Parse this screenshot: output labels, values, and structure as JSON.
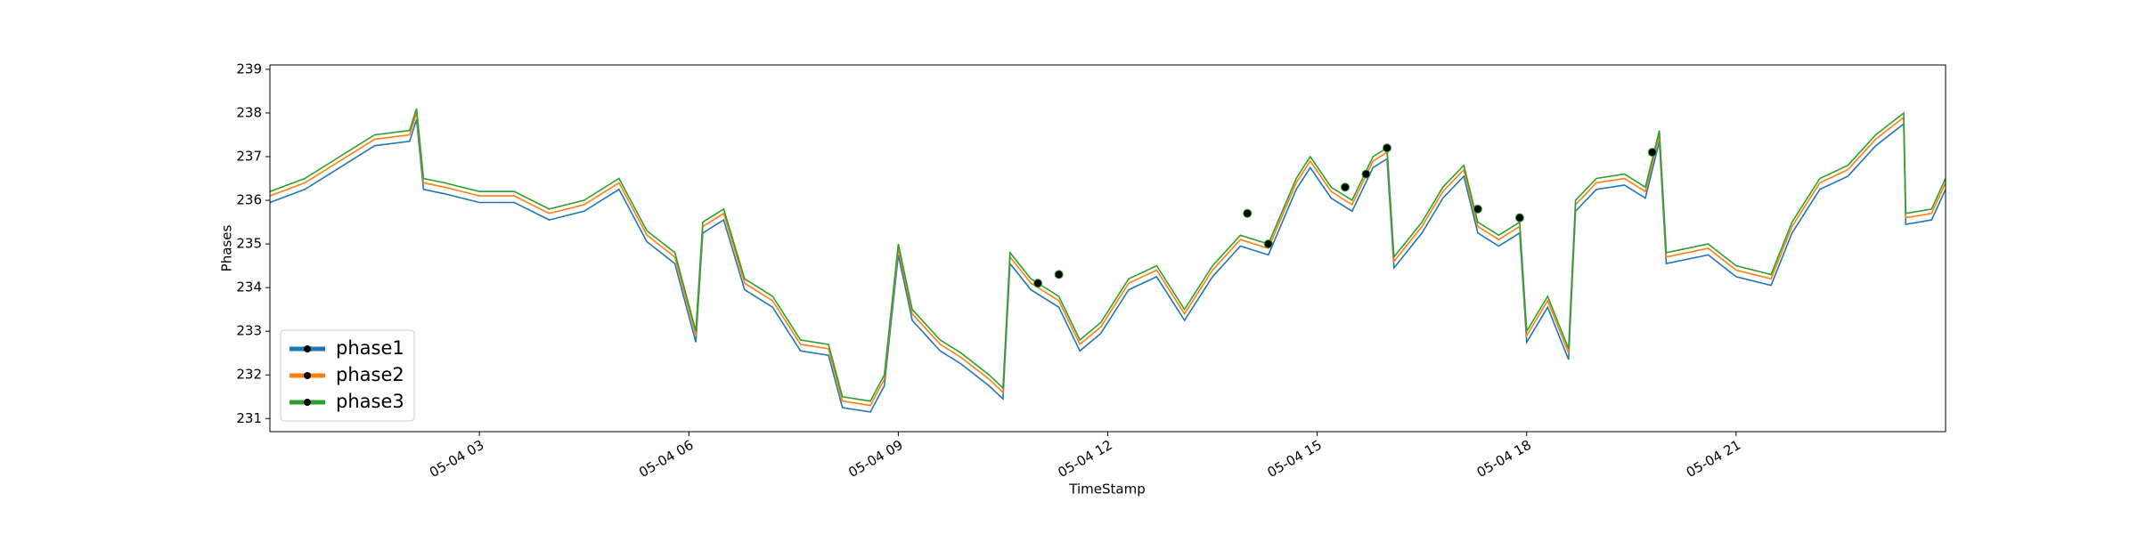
{
  "chart_data": {
    "type": "line",
    "xlabel": "TimeStamp",
    "ylabel": "Phases",
    "x": [
      0,
      0.5,
      1,
      1.5,
      2,
      2.1,
      2.2,
      2.5,
      3,
      3.5,
      4,
      4.5,
      5,
      5.4,
      5.8,
      6.1,
      6.2,
      6.5,
      6.8,
      7.2,
      7.6,
      8,
      8.2,
      8.6,
      8.8,
      9,
      9.2,
      9.6,
      9.9,
      10.3,
      10.5,
      10.6,
      10.9,
      11.3,
      11.6,
      11.9,
      12.3,
      12.7,
      13.1,
      13.5,
      13.9,
      14.3,
      14.7,
      14.9,
      15.2,
      15.5,
      15.8,
      16,
      16.1,
      16.5,
      16.8,
      17.1,
      17.3,
      17.6,
      17.9,
      18,
      18.3,
      18.6,
      18.7,
      19,
      19.4,
      19.7,
      19.9,
      20,
      20.6,
      21,
      21.5,
      21.8,
      22.2,
      22.6,
      23,
      23.4,
      23.43,
      23.8,
      24
    ],
    "series": [
      {
        "name": "phase1",
        "color": "#1f77b4",
        "values": [
          235.95,
          236.25,
          236.75,
          237.25,
          237.35,
          237.85,
          236.25,
          236.15,
          235.95,
          235.95,
          235.55,
          235.75,
          236.25,
          235.05,
          234.55,
          232.75,
          235.25,
          235.55,
          233.95,
          233.55,
          232.55,
          232.45,
          231.25,
          231.15,
          231.75,
          234.75,
          233.25,
          232.55,
          232.25,
          231.75,
          231.45,
          234.55,
          233.95,
          233.55,
          232.55,
          232.95,
          233.95,
          234.25,
          233.25,
          234.25,
          234.95,
          234.75,
          236.25,
          236.75,
          236.05,
          235.75,
          236.75,
          236.95,
          234.45,
          235.25,
          236.05,
          236.55,
          235.25,
          234.95,
          235.25,
          232.75,
          233.55,
          232.35,
          235.75,
          236.25,
          236.35,
          236.05,
          237.35,
          234.55,
          234.75,
          234.25,
          234.05,
          235.25,
          236.25,
          236.55,
          237.25,
          237.75,
          235.45,
          235.55,
          236.25
        ]
      },
      {
        "name": "phase2",
        "color": "#ff7f0e",
        "values": [
          236.1,
          236.4,
          236.9,
          237.4,
          237.5,
          238.0,
          236.4,
          236.3,
          236.1,
          236.1,
          235.7,
          235.9,
          236.4,
          235.2,
          234.7,
          232.9,
          235.4,
          235.7,
          234.1,
          233.7,
          232.7,
          232.6,
          231.4,
          231.3,
          231.9,
          234.9,
          233.4,
          232.7,
          232.4,
          231.9,
          231.6,
          234.7,
          234.1,
          233.7,
          232.7,
          233.1,
          234.1,
          234.4,
          233.4,
          234.4,
          235.1,
          234.9,
          236.4,
          236.9,
          236.2,
          235.9,
          236.9,
          237.1,
          234.6,
          235.4,
          236.2,
          236.7,
          235.4,
          235.1,
          235.4,
          232.9,
          233.7,
          232.5,
          235.9,
          236.4,
          236.5,
          236.2,
          237.5,
          234.7,
          234.9,
          234.4,
          234.2,
          235.4,
          236.4,
          236.7,
          237.4,
          237.9,
          235.6,
          235.7,
          236.4
        ]
      },
      {
        "name": "phase3",
        "color": "#2ca02c",
        "values": [
          236.2,
          236.5,
          237.0,
          237.5,
          237.6,
          238.1,
          236.5,
          236.4,
          236.2,
          236.2,
          235.8,
          236.0,
          236.5,
          235.3,
          234.8,
          233.0,
          235.5,
          235.8,
          234.2,
          233.8,
          232.8,
          232.7,
          231.5,
          231.4,
          232.0,
          235.0,
          233.5,
          232.8,
          232.5,
          232.0,
          231.7,
          234.8,
          234.2,
          233.8,
          232.8,
          233.2,
          234.2,
          234.5,
          233.5,
          234.5,
          235.2,
          235.0,
          236.5,
          237.0,
          236.3,
          236.0,
          237.0,
          237.2,
          234.7,
          235.5,
          236.3,
          236.8,
          235.5,
          235.2,
          235.5,
          233.0,
          233.8,
          232.6,
          236.0,
          236.5,
          236.6,
          236.3,
          237.6,
          234.8,
          235.0,
          234.5,
          234.3,
          235.5,
          236.5,
          236.8,
          237.5,
          238.0,
          235.7,
          235.8,
          236.5
        ]
      }
    ],
    "markers": {
      "color": "black",
      "x": [
        11.0,
        11.3,
        14.0,
        14.3,
        15.4,
        15.7,
        16.0,
        17.3,
        17.9,
        19.8
      ],
      "values": [
        234.1,
        234.3,
        235.7,
        235.0,
        236.3,
        236.6,
        237.2,
        235.8,
        235.6,
        237.1
      ]
    },
    "xlim": [
      0,
      24
    ],
    "ylim": [
      230.7,
      239.1
    ],
    "xticks": [
      {
        "value": 3,
        "label": "05-04 03"
      },
      {
        "value": 6,
        "label": "05-04 06"
      },
      {
        "value": 9,
        "label": "05-04 09"
      },
      {
        "value": 12,
        "label": "05-04 12"
      },
      {
        "value": 15,
        "label": "05-04 15"
      },
      {
        "value": 18,
        "label": "05-04 18"
      },
      {
        "value": 21,
        "label": "05-04 21"
      }
    ],
    "yticks": [
      231,
      232,
      233,
      234,
      235,
      236,
      237,
      238,
      239
    ],
    "legend": "lower left",
    "grid": false
  }
}
